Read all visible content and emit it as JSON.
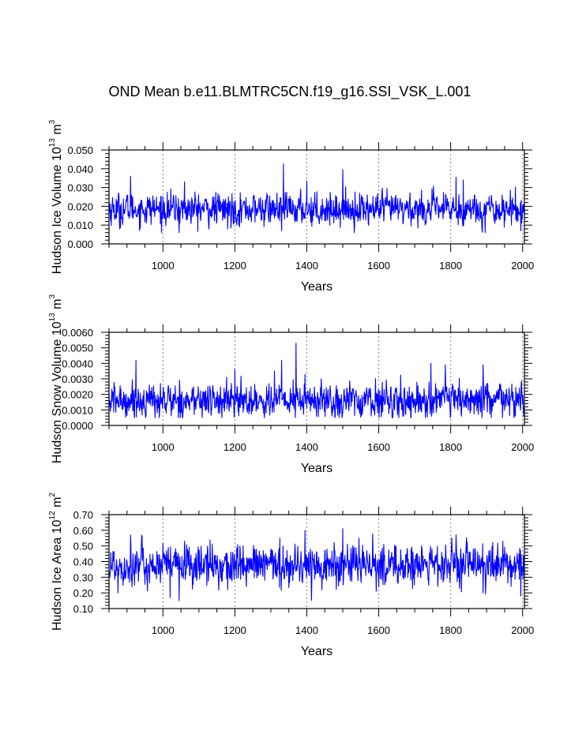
{
  "title": "OND Mean b.e11.BLMTRC5CN.f19_g16.SSI_VSK_L.001",
  "colors": {
    "series": "#0000ff",
    "axis": "#000000",
    "grid": "#808080"
  },
  "chart_data": [
    {
      "type": "line",
      "ylabel": {
        "text": "Hudson Ice Volume 10",
        "exp": "13",
        "unit": " m",
        "unit_exp": "3"
      },
      "xlabel": "Years",
      "xlim": [
        850,
        2005
      ],
      "ylim": [
        0.0,
        0.05
      ],
      "xticks": [
        1000,
        1200,
        1400,
        1600,
        1800,
        2000
      ],
      "xtick_labels": [
        "1000",
        "1200",
        "1400",
        "1600",
        "1800",
        "2000"
      ],
      "yticks": [
        0.0,
        0.01,
        0.02,
        0.03,
        0.04,
        0.05
      ],
      "ytick_labels": [
        "0.000",
        "0.010",
        "0.020",
        "0.030",
        "0.040",
        "0.050"
      ],
      "grid": "vertical-dotted",
      "series": [
        {
          "x_start": 850,
          "x_step": 1,
          "count": 1156,
          "mean": 0.0185,
          "std": 0.0042,
          "min": 0.006,
          "max": 0.0425,
          "peaks": [
            [
              910,
              0.036
            ],
            [
              1060,
              0.033
            ],
            [
              1335,
              0.0425
            ],
            [
              1400,
              0.0335
            ],
            [
              1500,
              0.0395
            ],
            [
              1815,
              0.0355
            ],
            [
              1835,
              0.034
            ]
          ],
          "troughs": [
            [
              880,
              0.008
            ],
            [
              1045,
              0.006
            ],
            [
              1180,
              0.008
            ],
            [
              1330,
              0.007
            ],
            [
              1995,
              0.007
            ]
          ]
        }
      ]
    },
    {
      "type": "line",
      "ylabel": {
        "text": "Hudson Snow Volume 10",
        "exp": "13",
        "unit": " m",
        "unit_exp": "3"
      },
      "xlabel": "Years",
      "xlim": [
        850,
        2005
      ],
      "ylim": [
        0.0,
        0.006
      ],
      "xticks": [
        1000,
        1200,
        1400,
        1600,
        1800,
        2000
      ],
      "xtick_labels": [
        "1000",
        "1200",
        "1400",
        "1600",
        "1800",
        "2000"
      ],
      "yticks": [
        0.0,
        0.001,
        0.002,
        0.003,
        0.004,
        0.005,
        0.006
      ],
      "ytick_labels": [
        "0.0000",
        "0.0010",
        "0.0020",
        "0.0030",
        "0.0040",
        "0.0050",
        "0.0060"
      ],
      "grid": "vertical-dotted",
      "series": [
        {
          "x_start": 850,
          "x_step": 1,
          "count": 1156,
          "mean": 0.0016,
          "std": 0.00055,
          "min": 0.0005,
          "max": 0.0053,
          "peaks": [
            [
              925,
              0.0042
            ],
            [
              1200,
              0.0036
            ],
            [
              1310,
              0.0035
            ],
            [
              1330,
              0.0042
            ],
            [
              1370,
              0.0053
            ],
            [
              1395,
              0.0033
            ],
            [
              1745,
              0.004
            ],
            [
              1785,
              0.0039
            ],
            [
              1890,
              0.0039
            ]
          ],
          "troughs": [
            [
              990,
              0.0005
            ],
            [
              1470,
              0.0006
            ],
            [
              1690,
              0.0005
            ],
            [
              1830,
              0.0006
            ],
            [
              1980,
              0.0006
            ]
          ]
        }
      ]
    },
    {
      "type": "line",
      "ylabel": {
        "text": "Hudson Ice Area 10",
        "exp": "12",
        "unit": " m",
        "unit_exp": "2"
      },
      "xlabel": "Years",
      "xlim": [
        850,
        2005
      ],
      "ylim": [
        0.1,
        0.7
      ],
      "xticks": [
        1000,
        1200,
        1400,
        1600,
        1800,
        2000
      ],
      "xtick_labels": [
        "1000",
        "1200",
        "1400",
        "1600",
        "1800",
        "2000"
      ],
      "yticks": [
        0.1,
        0.2,
        0.3,
        0.4,
        0.5,
        0.6,
        0.7
      ],
      "ytick_labels": [
        "0.10",
        "0.20",
        "0.30",
        "0.40",
        "0.50",
        "0.60",
        "0.70"
      ],
      "grid": "vertical-dotted",
      "series": [
        {
          "x_start": 850,
          "x_step": 1,
          "count": 1156,
          "mean": 0.375,
          "std": 0.065,
          "min": 0.15,
          "max": 0.61,
          "peaks": [
            [
              910,
              0.57
            ],
            [
              1060,
              0.53
            ],
            [
              1325,
              0.55
            ],
            [
              1395,
              0.6
            ],
            [
              1500,
              0.61
            ],
            [
              1545,
              0.55
            ],
            [
              1815,
              0.57
            ],
            [
              1945,
              0.53
            ]
          ],
          "troughs": [
            [
              875,
              0.2
            ],
            [
              1020,
              0.17
            ],
            [
              1045,
              0.15
            ],
            [
              1180,
              0.22
            ],
            [
              1890,
              0.2
            ],
            [
              1995,
              0.18
            ]
          ]
        }
      ]
    }
  ]
}
